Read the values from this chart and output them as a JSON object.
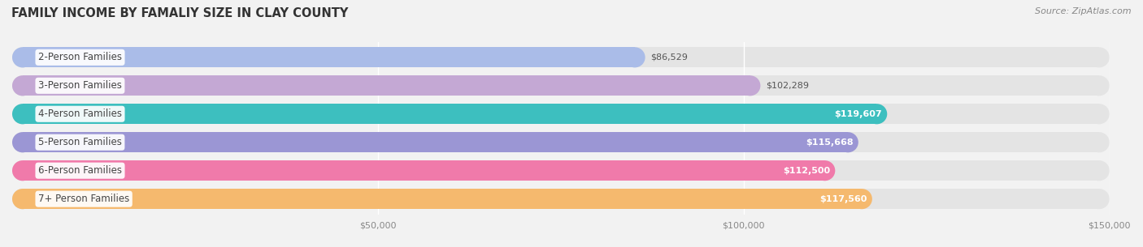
{
  "title": "FAMILY INCOME BY FAMALIY SIZE IN CLAY COUNTY",
  "source": "Source: ZipAtlas.com",
  "categories": [
    "2-Person Families",
    "3-Person Families",
    "4-Person Families",
    "5-Person Families",
    "6-Person Families",
    "7+ Person Families"
  ],
  "values": [
    86529,
    102289,
    119607,
    115668,
    112500,
    117560
  ],
  "bar_colors": [
    "#aabce8",
    "#c4a8d4",
    "#3dbfbf",
    "#9b96d4",
    "#f07aaa",
    "#f5b96e"
  ],
  "label_colors": [
    "#666666",
    "#666666",
    "#ffffff",
    "#ffffff",
    "#ffffff",
    "#ffffff"
  ],
  "value_outside": [
    true,
    true,
    false,
    false,
    false,
    false
  ],
  "x_tick_labels": [
    "$50,000",
    "$100,000",
    "$150,000"
  ],
  "x_tick_values": [
    50000,
    100000,
    150000
  ],
  "xlim_max": 150000,
  "background_color": "#f2f2f2",
  "bar_bg_color": "#e4e4e4",
  "title_fontsize": 10.5,
  "source_fontsize": 8,
  "label_fontsize": 8.5,
  "value_fontsize": 8
}
